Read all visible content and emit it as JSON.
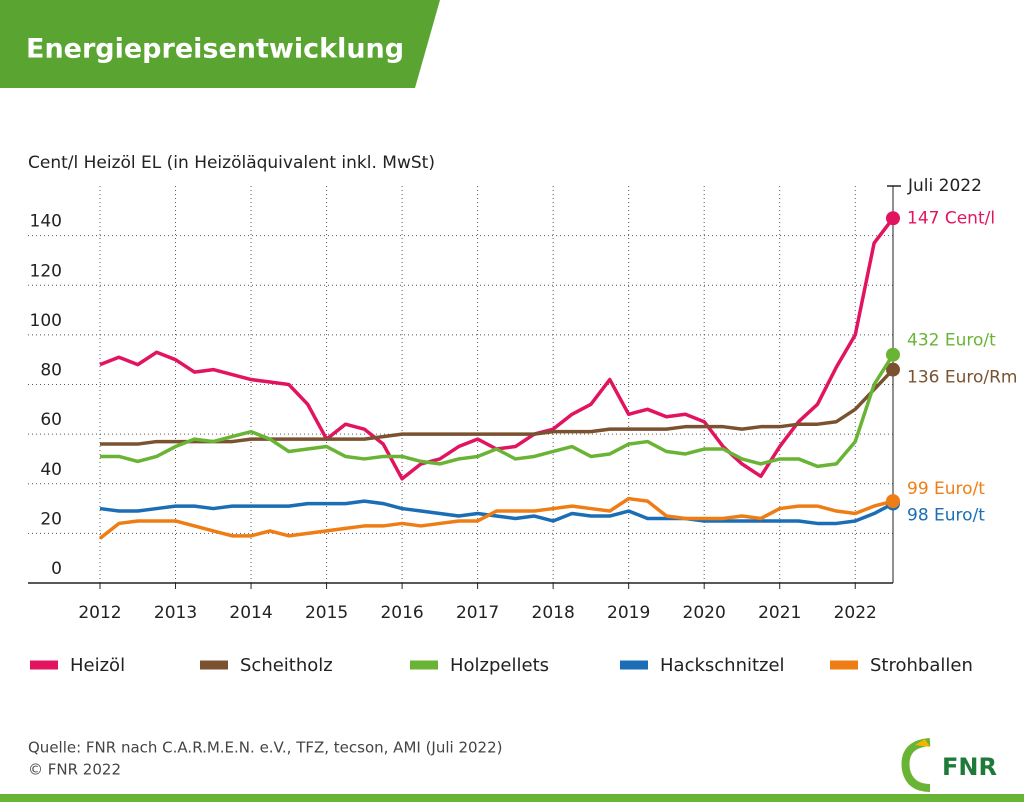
{
  "chart_data": {
    "type": "line",
    "title": "Energiepreisentwicklung",
    "y_axis_label": "Cent/l Heizöl EL (in Heizöläquivalent inkl. MwSt)",
    "annotation": "Juli 2022",
    "source": "Quelle: FNR nach C.A.R.M.E.N. e.V., TFZ, tecson, AMI (Juli 2022)",
    "copyright": "© FNR 2022",
    "logo": "FNR",
    "x": [
      2012,
      2012.25,
      2012.5,
      2012.75,
      2013,
      2013.25,
      2013.5,
      2013.75,
      2014,
      2014.25,
      2014.5,
      2014.75,
      2015,
      2015.25,
      2015.5,
      2015.75,
      2016,
      2016.25,
      2016.5,
      2016.75,
      2017,
      2017.25,
      2017.5,
      2017.75,
      2018,
      2018.25,
      2018.5,
      2018.75,
      2019,
      2019.25,
      2019.5,
      2019.75,
      2020,
      2020.25,
      2020.5,
      2020.75,
      2021,
      2021.25,
      2021.5,
      2021.75,
      2022,
      2022.25,
      2022.5
    ],
    "xlim": [
      2012,
      2022.5
    ],
    "xticks": [
      2012,
      2013,
      2014,
      2015,
      2016,
      2017,
      2018,
      2019,
      2020,
      2021,
      2022
    ],
    "ylim": [
      0,
      160
    ],
    "yticks": [
      0,
      20,
      40,
      60,
      80,
      100,
      120,
      140
    ],
    "grid": true,
    "series": [
      {
        "name": "Heizöl",
        "color": "#e2145f",
        "end_label": "147 Cent/l",
        "values": [
          88,
          91,
          88,
          93,
          90,
          85,
          86,
          84,
          82,
          81,
          80,
          72,
          58,
          64,
          62,
          56,
          42,
          48,
          50,
          55,
          58,
          54,
          55,
          60,
          62,
          68,
          72,
          82,
          68,
          70,
          67,
          68,
          65,
          55,
          48,
          43,
          55,
          65,
          72,
          87,
          100,
          137,
          147
        ]
      },
      {
        "name": "Scheitholz",
        "color": "#7a5230",
        "end_label": "136 Euro/Rm",
        "values": [
          56,
          56,
          56,
          57,
          57,
          57,
          57,
          57,
          58,
          58,
          58,
          58,
          58,
          58,
          58,
          59,
          60,
          60,
          60,
          60,
          60,
          60,
          60,
          60,
          61,
          61,
          61,
          62,
          62,
          62,
          62,
          63,
          63,
          63,
          62,
          63,
          63,
          64,
          64,
          65,
          70,
          78,
          86
        ]
      },
      {
        "name": "Holzpellets",
        "color": "#6ab435",
        "end_label": "432 Euro/t",
        "values": [
          51,
          51,
          49,
          51,
          55,
          58,
          57,
          59,
          61,
          58,
          53,
          54,
          55,
          51,
          50,
          51,
          51,
          49,
          48,
          50,
          51,
          54,
          50,
          51,
          53,
          55,
          51,
          52,
          56,
          57,
          53,
          52,
          54,
          54,
          50,
          48,
          50,
          50,
          47,
          48,
          57,
          80,
          92
        ]
      },
      {
        "name": "Hackschnitzel",
        "color": "#1b6eb5",
        "end_label": "98 Euro/t",
        "values": [
          30,
          29,
          29,
          30,
          31,
          31,
          30,
          31,
          31,
          31,
          31,
          32,
          32,
          32,
          33,
          32,
          30,
          29,
          28,
          27,
          28,
          27,
          26,
          27,
          25,
          28,
          27,
          27,
          29,
          26,
          26,
          26,
          25,
          25,
          25,
          25,
          25,
          25,
          24,
          24,
          25,
          28,
          32
        ]
      },
      {
        "name": "Strohballen",
        "color": "#ef7d15",
        "end_label": "99 Euro/t",
        "values": [
          18,
          24,
          25,
          25,
          25,
          23,
          21,
          19,
          19,
          21,
          19,
          20,
          21,
          22,
          23,
          23,
          24,
          23,
          24,
          25,
          25,
          29,
          29,
          29,
          30,
          31,
          30,
          29,
          34,
          33,
          27,
          26,
          26,
          26,
          27,
          26,
          30,
          31,
          31,
          29,
          28,
          31,
          33
        ]
      }
    ]
  }
}
